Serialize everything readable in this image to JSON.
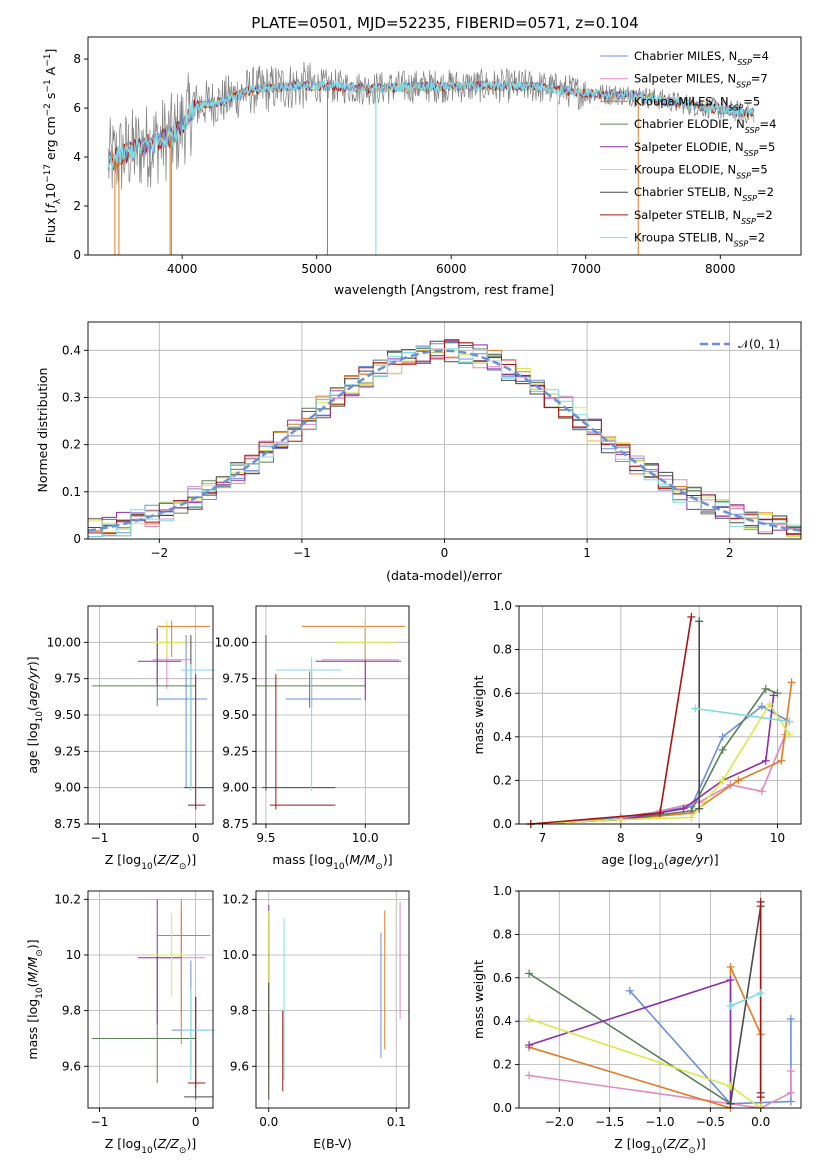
{
  "title": "PLATE=0501, MJD=52235, FIBERID=0571, z=0.104",
  "colors": {
    "Chabrier MILES": "#6a8fdc",
    "Salpeter MILES": "#e389bf",
    "Kroupa MILES": "#e17b26",
    "Chabrier ELODIE": "#5a8059",
    "Salpeter ELODIE": "#8e2dab",
    "Kroupa ELODIE": "#d9e84e",
    "Chabrier STELIB": "#4a4a4a",
    "Salpeter STELIB": "#a81414",
    "Kroupa STELIB": "#7fdbe0",
    "gaussian": "#6a8fdc",
    "grid": "#b0b0b0",
    "spectrum_gray": "#808080"
  },
  "chart_data": [
    {
      "type": "line",
      "name": "spectrum",
      "xlabel": "wavelength [Angstrom, rest frame]",
      "ylabel": "Flux [f_λ 10^-17 erg cm^-2 s^-1 A^-1]",
      "xlim": [
        3300,
        8600
      ],
      "ylim": [
        0,
        8.9
      ],
      "xticks": [
        4000,
        5000,
        6000,
        7000,
        8000
      ],
      "yticks": [
        0,
        2,
        4,
        6,
        8
      ],
      "grid": false,
      "legend_position": "right",
      "legend": [
        {
          "model": "Chabrier MILES",
          "n": "4"
        },
        {
          "model": "Salpeter MILES",
          "n": "7"
        },
        {
          "model": "Kroupa MILES",
          "n": "5"
        },
        {
          "model": "Chabrier ELODIE",
          "n": "4"
        },
        {
          "model": "Salpeter ELODIE",
          "n": "5"
        },
        {
          "model": "Kroupa ELODIE",
          "n": "5"
        },
        {
          "model": "Chabrier STELIB",
          "n": "2"
        },
        {
          "model": "Salpeter STELIB",
          "n": "2"
        },
        {
          "model": "Kroupa STELIB",
          "n": "2"
        }
      ],
      "continuum": {
        "x": [
          3450,
          3600,
          3800,
          3950,
          4100,
          4300,
          4500,
          4800,
          5100,
          5400,
          5800,
          6200,
          6600,
          7000,
          7400,
          7800,
          8200
        ],
        "y": [
          3.8,
          4.2,
          4.6,
          4.9,
          6.1,
          6.3,
          6.7,
          6.9,
          6.9,
          6.8,
          6.9,
          6.9,
          6.9,
          6.6,
          6.5,
          6.1,
          5.8
        ]
      },
      "absorption_features": [
        3500,
        3530,
        3910,
        3920,
        5080,
        5440,
        6790,
        7390
      ]
    },
    {
      "type": "line",
      "name": "residual_histogram",
      "xlabel": "(data-model)/error",
      "ylabel": "Normed distribution",
      "xlim": [
        -2.5,
        2.5
      ],
      "ylim": [
        0,
        0.46
      ],
      "xticks": [
        -2,
        -1,
        0,
        1,
        2
      ],
      "yticks": [
        0.0,
        0.1,
        0.2,
        0.3,
        0.4
      ],
      "grid": true,
      "legend_position": "top-right",
      "gaussian_label": "𝒩(0, 1)",
      "bin_width": 0.1,
      "bin_start": -2.5
    },
    {
      "type": "scatter",
      "name": "age_vs_metallicity",
      "xlabel": "Z [log10(Z/Z⊙)]",
      "ylabel": "age [log10(age/yr)]",
      "xlim": [
        -1.12,
        0.18
      ],
      "ylim": [
        8.75,
        10.25
      ],
      "xticks": [
        -1,
        0
      ],
      "yticks": [
        8.75,
        9.0,
        9.25,
        9.5,
        9.75,
        10.0
      ],
      "grid": true,
      "points": [
        {
          "model": "Chabrier MILES",
          "x": -0.1,
          "y": 9.61,
          "ex": [
            -0.4,
            0.12
          ],
          "ey": [
            9.0,
            10.05
          ]
        },
        {
          "model": "Salpeter MILES",
          "x": -0.3,
          "y": 9.88,
          "ex": [
            -0.45,
            -0.05
          ],
          "ey": [
            9.68,
            10.12
          ]
        },
        {
          "model": "Kroupa MILES",
          "x": -0.25,
          "y": 10.11,
          "ex": [
            -0.4,
            0.15
          ],
          "ey": [
            9.9,
            10.15
          ]
        },
        {
          "model": "Chabrier ELODIE",
          "x": -0.4,
          "y": 9.7,
          "ex": [
            -1.08,
            0.0
          ],
          "ey": [
            9.56,
            10.1
          ]
        },
        {
          "model": "Salpeter ELODIE",
          "x": -0.4,
          "y": 9.87,
          "ex": [
            -0.6,
            -0.15
          ],
          "ey": [
            9.7,
            10.1
          ]
        },
        {
          "model": "Kroupa ELODIE",
          "x": -0.3,
          "y": 10.0,
          "ex": [
            -0.45,
            -0.1
          ],
          "ey": [
            9.9,
            10.15
          ]
        },
        {
          "model": "Chabrier STELIB",
          "x": -0.05,
          "y": 9.0,
          "ex": [
            -0.12,
            0.18
          ],
          "ey": [
            9.0,
            10.05
          ]
        },
        {
          "model": "Salpeter STELIB",
          "x": 0.0,
          "y": 8.88,
          "ex": [
            -0.08,
            0.1
          ],
          "ey": [
            8.85,
            9.78
          ]
        },
        {
          "model": "Kroupa STELIB",
          "x": -0.05,
          "y": 9.81,
          "ex": [
            -0.15,
            0.2
          ],
          "ey": [
            8.98,
            9.85
          ]
        }
      ]
    },
    {
      "type": "scatter",
      "name": "age_vs_mass",
      "xlabel": "mass [log10(M/M⊙)]",
      "ylabel": "",
      "xlim": [
        9.45,
        10.22
      ],
      "ylim": [
        8.75,
        10.25
      ],
      "xticks": [
        9.5,
        10.0
      ],
      "yticks": [
        8.75,
        9.0,
        9.25,
        9.5,
        9.75,
        10.0
      ],
      "grid": true,
      "points": [
        {
          "model": "Chabrier MILES",
          "x": 9.73,
          "y": 9.61,
          "ex": [
            9.6,
            9.98
          ],
          "ey": [
            9.55,
            9.8
          ]
        },
        {
          "model": "Salpeter MILES",
          "x": 10.0,
          "y": 9.88,
          "ex": [
            9.78,
            10.17
          ],
          "ey": [
            9.68,
            10.1
          ]
        },
        {
          "model": "Kroupa MILES",
          "x": 10.0,
          "y": 10.11,
          "ex": [
            9.68,
            10.2
          ],
          "ey": [
            9.88,
            10.15
          ]
        },
        {
          "model": "Chabrier ELODIE",
          "x": 9.72,
          "y": 9.7,
          "ex": [
            9.45,
            10.0
          ],
          "ey": [
            9.55,
            9.8
          ]
        },
        {
          "model": "Salpeter ELODIE",
          "x": 10.0,
          "y": 9.87,
          "ex": [
            9.75,
            10.18
          ],
          "ey": [
            9.6,
            10.1
          ]
        },
        {
          "model": "Kroupa ELODIE",
          "x": 10.0,
          "y": 10.0,
          "ex": [
            9.85,
            10.15
          ],
          "ey": [
            9.88,
            10.15
          ]
        },
        {
          "model": "Chabrier STELIB",
          "x": 9.5,
          "y": 9.0,
          "ex": [
            9.48,
            9.85
          ],
          "ey": [
            8.98,
            10.05
          ]
        },
        {
          "model": "Salpeter STELIB",
          "x": 9.55,
          "y": 8.88,
          "ex": [
            9.52,
            9.85
          ],
          "ey": [
            8.85,
            9.78
          ]
        },
        {
          "model": "Kroupa STELIB",
          "x": 9.73,
          "y": 9.81,
          "ex": [
            9.55,
            9.88
          ],
          "ey": [
            8.98,
            9.9
          ]
        }
      ]
    },
    {
      "type": "line",
      "name": "mass_weight_vs_age",
      "xlabel": "age [log10(age/yr)]",
      "ylabel": "mass weight",
      "xlim": [
        6.7,
        10.3
      ],
      "ylim": [
        0,
        1
      ],
      "xticks": [
        7,
        8,
        9,
        10
      ],
      "yticks": [
        0.0,
        0.2,
        0.4,
        0.6,
        0.8,
        1.0
      ],
      "grid": true,
      "series": [
        {
          "model": "Chabrier MILES",
          "x": [
            6.85,
            8.0,
            8.9,
            9.3,
            9.8,
            10.15
          ],
          "y": [
            0.0,
            0.03,
            0.08,
            0.4,
            0.54,
            0.47
          ]
        },
        {
          "model": "Salpeter MILES",
          "x": [
            6.85,
            8.0,
            8.5,
            9.0,
            9.4,
            9.8,
            10.1
          ],
          "y": [
            0.0,
            0.02,
            0.06,
            0.1,
            0.18,
            0.15,
            0.41
          ]
        },
        {
          "model": "Kroupa MILES",
          "x": [
            6.85,
            8.0,
            8.9,
            9.5,
            10.05,
            10.18
          ],
          "y": [
            0.0,
            0.02,
            0.05,
            0.2,
            0.29,
            0.65
          ]
        },
        {
          "model": "Chabrier ELODIE",
          "x": [
            6.85,
            8.0,
            8.9,
            9.3,
            9.85,
            10.0
          ],
          "y": [
            0.0,
            0.02,
            0.06,
            0.34,
            0.62,
            0.6
          ]
        },
        {
          "model": "Salpeter ELODIE",
          "x": [
            6.85,
            8.0,
            8.8,
            9.3,
            9.85,
            9.95
          ],
          "y": [
            0.0,
            0.02,
            0.07,
            0.2,
            0.29,
            0.59
          ]
        },
        {
          "model": "Kroupa ELODIE",
          "x": [
            6.85,
            8.0,
            8.9,
            9.3,
            9.9,
            10.15
          ],
          "y": [
            0.0,
            0.02,
            0.03,
            0.2,
            0.55,
            0.41
          ]
        },
        {
          "model": "Chabrier STELIB",
          "x": [
            9.0,
            9.0
          ],
          "y": [
            0.07,
            0.93
          ]
        },
        {
          "model": "Salpeter STELIB",
          "x": [
            6.85,
            8.5,
            8.9
          ],
          "y": [
            0.0,
            0.05,
            0.95
          ]
        },
        {
          "model": "Kroupa STELIB",
          "x": [
            8.95,
            10.15
          ],
          "y": [
            0.53,
            0.47
          ]
        }
      ]
    },
    {
      "type": "scatter",
      "name": "mass_vs_metallicity",
      "xlabel": "Z [log10(Z/Z⊙)]",
      "ylabel": "mass [log10(M/M⊙)]",
      "xlim": [
        -1.12,
        0.18
      ],
      "ylim": [
        9.45,
        10.23
      ],
      "xticks": [
        -1,
        0
      ],
      "yticks": [
        9.6,
        9.8,
        10.0,
        10.2
      ],
      "grid": true,
      "points": [
        {
          "model": "Chabrier MILES",
          "x": -0.05,
          "y": 9.73,
          "ex": [
            -0.25,
            0.15
          ],
          "ey": [
            9.6,
            9.98
          ]
        },
        {
          "model": "Salpeter MILES",
          "x": -0.15,
          "y": 9.99,
          "ex": [
            -0.4,
            0.1
          ],
          "ey": [
            9.78,
            10.17
          ]
        },
        {
          "model": "Kroupa MILES",
          "x": -0.15,
          "y": 10.07,
          "ex": [
            -0.4,
            0.15
          ],
          "ey": [
            9.68,
            10.2
          ]
        },
        {
          "model": "Chabrier ELODIE",
          "x": -0.4,
          "y": 9.7,
          "ex": [
            -1.08,
            0.0
          ],
          "ey": [
            9.54,
            10.0
          ]
        },
        {
          "model": "Salpeter ELODIE",
          "x": -0.4,
          "y": 9.99,
          "ex": [
            -0.6,
            -0.15
          ],
          "ey": [
            9.75,
            10.2
          ]
        },
        {
          "model": "Kroupa ELODIE",
          "x": -0.25,
          "y": 10.0,
          "ex": [
            -0.45,
            -0.1
          ],
          "ey": [
            9.85,
            10.15
          ]
        },
        {
          "model": "Chabrier STELIB",
          "x": 0.0,
          "y": 9.49,
          "ex": [
            -0.12,
            0.18
          ],
          "ey": [
            9.48,
            9.85
          ]
        },
        {
          "model": "Salpeter STELIB",
          "x": 0.0,
          "y": 9.54,
          "ex": [
            -0.08,
            0.1
          ],
          "ey": [
            9.52,
            9.85
          ]
        },
        {
          "model": "Kroupa STELIB",
          "x": -0.05,
          "y": 9.73,
          "ex": [
            -0.15,
            0.2
          ],
          "ey": [
            9.55,
            9.88
          ]
        }
      ]
    },
    {
      "type": "scatter",
      "name": "mass_vs_ebv",
      "xlabel": "E(B-V)",
      "ylabel": "",
      "xlim": [
        -0.01,
        0.11
      ],
      "ylim": [
        9.45,
        10.23
      ],
      "xticks": [
        0.0,
        0.1
      ],
      "yticks": [
        9.6,
        9.8,
        10.0,
        10.2
      ],
      "grid": true,
      "points": [
        {
          "model": "Chabrier MILES",
          "x": 0.088,
          "y": 9.8,
          "ey": [
            9.63,
            10.08
          ]
        },
        {
          "model": "Salpeter MILES",
          "x": 0.103,
          "y": 9.95,
          "ey": [
            9.77,
            10.19
          ]
        },
        {
          "model": "Kroupa MILES",
          "x": 0.091,
          "y": 9.9,
          "ey": [
            9.66,
            10.16
          ]
        },
        {
          "model": "Chabrier ELODIE",
          "x": 0.0,
          "y": 9.7,
          "ey": [
            9.55,
            10.12
          ]
        },
        {
          "model": "Salpeter ELODIE",
          "x": 0.0,
          "y": 9.8,
          "ey": [
            9.6,
            10.18
          ]
        },
        {
          "model": "Kroupa ELODIE",
          "x": 0.0,
          "y": 9.9,
          "ey": [
            9.5,
            10.16
          ]
        },
        {
          "model": "Chabrier STELIB",
          "x": 0.0,
          "y": 9.5,
          "ey": [
            9.48,
            9.9
          ]
        },
        {
          "model": "Salpeter STELIB",
          "x": 0.011,
          "y": 9.6,
          "ey": [
            9.51,
            9.8
          ]
        },
        {
          "model": "Kroupa STELIB",
          "x": 0.012,
          "y": 9.8,
          "ey": [
            9.55,
            10.13
          ]
        }
      ]
    },
    {
      "type": "line",
      "name": "mass_weight_vs_metallicity",
      "xlabel": "Z [log10(Z/Z⊙)]",
      "ylabel": "mass weight",
      "xlim": [
        -2.4,
        0.4
      ],
      "ylim": [
        0,
        1
      ],
      "xticks": [
        -2.0,
        -1.5,
        -1.0,
        -0.5,
        0.0
      ],
      "yticks": [
        0.0,
        0.2,
        0.4,
        0.6,
        0.8,
        1.0
      ],
      "grid": true,
      "series": [
        {
          "model": "Chabrier MILES",
          "x": [
            -1.3,
            -0.3,
            0.3,
            0.3
          ],
          "y": [
            0.54,
            0.02,
            0.03,
            0.41
          ]
        },
        {
          "model": "Salpeter MILES",
          "x": [
            -2.3,
            0.0,
            0.3,
            0.3
          ],
          "y": [
            0.15,
            0.0,
            0.07,
            0.17
          ]
        },
        {
          "model": "Kroupa MILES",
          "x": [
            -2.3,
            -0.3,
            -0.3,
            0.0,
            0.0
          ],
          "y": [
            0.28,
            0.0,
            0.65,
            0.34,
            0.0
          ]
        },
        {
          "model": "Chabrier ELODIE",
          "x": [
            -2.3,
            -0.3
          ],
          "y": [
            0.62,
            0.02
          ]
        },
        {
          "model": "Salpeter ELODIE",
          "x": [
            -2.3,
            -0.3,
            -0.3
          ],
          "y": [
            0.29,
            0.59,
            0.02
          ]
        },
        {
          "model": "Kroupa ELODIE",
          "x": [
            -2.3,
            -0.3,
            0.0
          ],
          "y": [
            0.41,
            0.1,
            0.0
          ]
        },
        {
          "model": "Chabrier STELIB",
          "x": [
            -0.3,
            0.0,
            0.0
          ],
          "y": [
            0.02,
            0.93,
            0.07
          ]
        },
        {
          "model": "Salpeter STELIB",
          "x": [
            0.0,
            0.0
          ],
          "y": [
            0.05,
            0.95
          ]
        },
        {
          "model": "Kroupa STELIB",
          "x": [
            -0.3,
            0.0
          ],
          "y": [
            0.47,
            0.53
          ]
        }
      ]
    }
  ]
}
